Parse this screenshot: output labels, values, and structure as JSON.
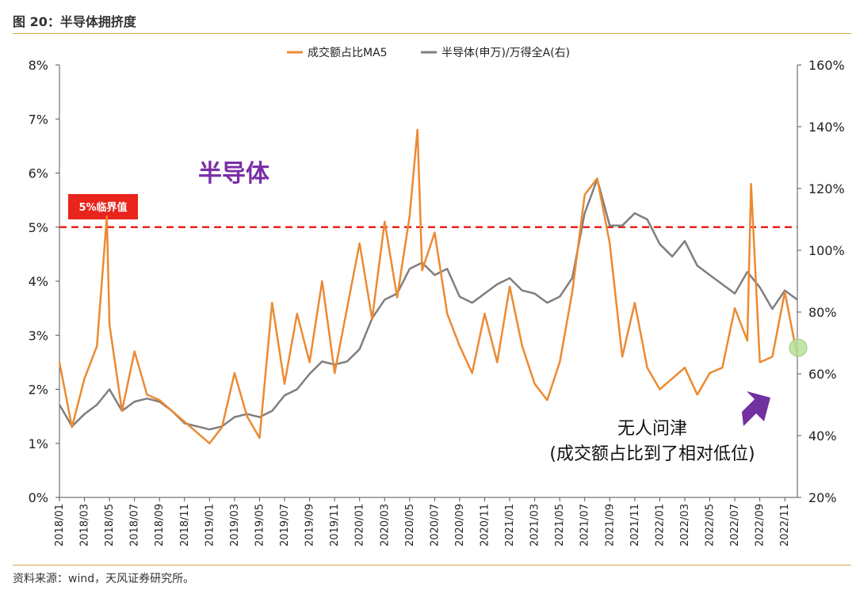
{
  "header": {
    "figure_title": "图 20：半导体拥挤度"
  },
  "footer": {
    "source": "资料来源：wind，天风证券研究所。"
  },
  "colors": {
    "orange": "#ec8a33",
    "gray": "#7f7f7f",
    "red": "#e8241c",
    "purple": "#7b2fa6",
    "arrow": "#7030a0",
    "green": "#b7e09a"
  },
  "chart_data": {
    "type": "line",
    "title": "",
    "xlabel": "",
    "ylabel": "",
    "x_ticks": [
      "2018/01",
      "2018/03",
      "2018/05",
      "2018/07",
      "2018/09",
      "2018/11",
      "2019/01",
      "2019/03",
      "2019/05",
      "2019/07",
      "2019/09",
      "2019/11",
      "2020/01",
      "2020/03",
      "2020/05",
      "2020/07",
      "2020/09",
      "2020/11",
      "2021/01",
      "2021/03",
      "2021/05",
      "2021/07",
      "2021/09",
      "2021/11",
      "2022/01",
      "2022/03",
      "2022/05",
      "2022/07",
      "2022/09",
      "2022/11"
    ],
    "x_range": [
      "2018/01",
      "2022/12"
    ],
    "y_left": {
      "ticks": [
        "0%",
        "1%",
        "2%",
        "3%",
        "4%",
        "5%",
        "6%",
        "7%",
        "8%"
      ],
      "ylim": [
        0,
        8
      ]
    },
    "y_right": {
      "ticks": [
        "20%",
        "40%",
        "60%",
        "80%",
        "100%",
        "120%",
        "140%",
        "160%"
      ],
      "ylim": [
        20,
        160
      ]
    },
    "grid": false,
    "legend_position": "top-center",
    "series": [
      {
        "name": "成交额占比MA5",
        "axis": "left",
        "color": "#ec8a33",
        "points": [
          [
            "2018/01",
            2.5
          ],
          [
            "2018/02",
            1.3
          ],
          [
            "2018/03",
            2.2
          ],
          [
            "2018/04",
            2.8
          ],
          [
            "2018/04/25",
            5.2
          ],
          [
            "2018/05",
            3.2
          ],
          [
            "2018/06",
            1.6
          ],
          [
            "2018/07",
            2.7
          ],
          [
            "2018/08",
            1.9
          ],
          [
            "2018/09",
            1.8
          ],
          [
            "2018/10",
            1.6
          ],
          [
            "2018/11",
            1.4
          ],
          [
            "2018/12",
            1.2
          ],
          [
            "2019/01",
            1.0
          ],
          [
            "2019/02",
            1.3
          ],
          [
            "2019/03",
            2.3
          ],
          [
            "2019/04",
            1.5
          ],
          [
            "2019/05",
            1.1
          ],
          [
            "2019/06",
            3.6
          ],
          [
            "2019/07",
            2.1
          ],
          [
            "2019/08",
            3.4
          ],
          [
            "2019/09",
            2.5
          ],
          [
            "2019/10",
            4.0
          ],
          [
            "2019/11",
            2.3
          ],
          [
            "2019/12",
            3.5
          ],
          [
            "2020/01",
            4.7
          ],
          [
            "2020/02",
            3.3
          ],
          [
            "2020/03",
            5.1
          ],
          [
            "2020/04",
            3.7
          ],
          [
            "2020/05",
            5.2
          ],
          [
            "2020/05/20",
            6.8
          ],
          [
            "2020/06",
            4.2
          ],
          [
            "2020/07",
            4.9
          ],
          [
            "2020/08",
            3.4
          ],
          [
            "2020/09",
            2.8
          ],
          [
            "2020/10",
            2.3
          ],
          [
            "2020/11",
            3.4
          ],
          [
            "2020/12",
            2.5
          ],
          [
            "2021/01",
            3.9
          ],
          [
            "2021/02",
            2.8
          ],
          [
            "2021/03",
            2.1
          ],
          [
            "2021/04",
            1.8
          ],
          [
            "2021/05",
            2.5
          ],
          [
            "2021/06",
            3.8
          ],
          [
            "2021/07",
            5.6
          ],
          [
            "2021/08",
            5.9
          ],
          [
            "2021/09",
            4.7
          ],
          [
            "2021/10",
            2.6
          ],
          [
            "2021/11",
            3.6
          ],
          [
            "2021/12",
            2.4
          ],
          [
            "2022/01",
            2.0
          ],
          [
            "2022/02",
            2.2
          ],
          [
            "2022/03",
            2.4
          ],
          [
            "2022/04",
            1.9
          ],
          [
            "2022/05",
            2.3
          ],
          [
            "2022/06",
            2.4
          ],
          [
            "2022/07",
            3.5
          ],
          [
            "2022/08",
            2.9
          ],
          [
            "2022/08/10",
            5.8
          ],
          [
            "2022/09",
            2.5
          ],
          [
            "2022/10",
            2.6
          ],
          [
            "2022/11",
            3.8
          ],
          [
            "2022/12",
            2.6
          ]
        ]
      },
      {
        "name": "半导体(申万)/万得全A(右)",
        "axis": "right",
        "color": "#7f7f7f",
        "points": [
          [
            "2018/01",
            50
          ],
          [
            "2018/02",
            43
          ],
          [
            "2018/03",
            47
          ],
          [
            "2018/04",
            50
          ],
          [
            "2018/05",
            55
          ],
          [
            "2018/06",
            48
          ],
          [
            "2018/07",
            51
          ],
          [
            "2018/08",
            52
          ],
          [
            "2018/09",
            51
          ],
          [
            "2018/10",
            48
          ],
          [
            "2018/11",
            44
          ],
          [
            "2018/12",
            43
          ],
          [
            "2019/01",
            42
          ],
          [
            "2019/02",
            43
          ],
          [
            "2019/03",
            46
          ],
          [
            "2019/04",
            47
          ],
          [
            "2019/05",
            46
          ],
          [
            "2019/06",
            48
          ],
          [
            "2019/07",
            53
          ],
          [
            "2019/08",
            55
          ],
          [
            "2019/09",
            60
          ],
          [
            "2019/10",
            64
          ],
          [
            "2019/11",
            63
          ],
          [
            "2019/12",
            64
          ],
          [
            "2020/01",
            68
          ],
          [
            "2020/02",
            78
          ],
          [
            "2020/03",
            84
          ],
          [
            "2020/04",
            86
          ],
          [
            "2020/05",
            94
          ],
          [
            "2020/06",
            96
          ],
          [
            "2020/07",
            92
          ],
          [
            "2020/08",
            94
          ],
          [
            "2020/09",
            85
          ],
          [
            "2020/10",
            83
          ],
          [
            "2020/11",
            86
          ],
          [
            "2020/12",
            89
          ],
          [
            "2021/01",
            91
          ],
          [
            "2021/02",
            87
          ],
          [
            "2021/03",
            86
          ],
          [
            "2021/04",
            83
          ],
          [
            "2021/05",
            85
          ],
          [
            "2021/06",
            91
          ],
          [
            "2021/07",
            112
          ],
          [
            "2021/08",
            123
          ],
          [
            "2021/09",
            108
          ],
          [
            "2021/10",
            108
          ],
          [
            "2021/11",
            112
          ],
          [
            "2021/12",
            110
          ],
          [
            "2022/01",
            102
          ],
          [
            "2022/02",
            98
          ],
          [
            "2022/03",
            103
          ],
          [
            "2022/04",
            95
          ],
          [
            "2022/05",
            92
          ],
          [
            "2022/06",
            89
          ],
          [
            "2022/07",
            86
          ],
          [
            "2022/08",
            93
          ],
          [
            "2022/09",
            88
          ],
          [
            "2022/10",
            81
          ],
          [
            "2022/11",
            87
          ],
          [
            "2022/12",
            84
          ]
        ]
      }
    ],
    "threshold": {
      "value": 5,
      "axis": "left",
      "label": "5%临界值"
    },
    "annotations": {
      "sector": "半导体",
      "note_line1": "无人问津",
      "note_line2": "(成交额占比到了相对低位)"
    }
  }
}
